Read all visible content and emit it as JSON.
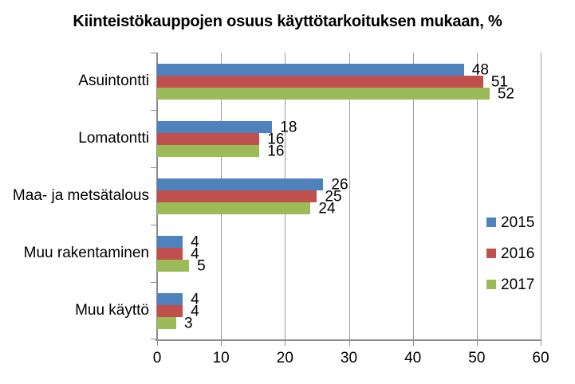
{
  "chart_data": {
    "type": "bar",
    "orientation": "horizontal",
    "title": "Kiinteistökauppojen osuus käyttötarkoituksen mukaan, %",
    "categories": [
      "Asuintontti",
      "Lomatontti",
      "Maa- ja metsätalous",
      "Muu rakentaminen",
      "Muu käyttö"
    ],
    "series": [
      {
        "name": "2015",
        "color": "#4F81BD",
        "values": [
          48,
          18,
          26,
          4,
          4
        ]
      },
      {
        "name": "2016",
        "color": "#C0504D",
        "values": [
          51,
          16,
          25,
          4,
          4
        ]
      },
      {
        "name": "2017",
        "color": "#9BBB59",
        "values": [
          52,
          16,
          24,
          5,
          3
        ]
      }
    ],
    "xlim": [
      0,
      60
    ],
    "x_ticks": [
      0,
      10,
      20,
      30,
      40,
      50,
      60
    ],
    "grid": "vertical-gridlines-on",
    "legend_position": "right-inside-plot",
    "data_labels": true,
    "colors": {
      "axis": "#8C8C8C",
      "gridline": "#9C9C9C",
      "text": "#000000",
      "background": "#FFFFFF"
    }
  }
}
